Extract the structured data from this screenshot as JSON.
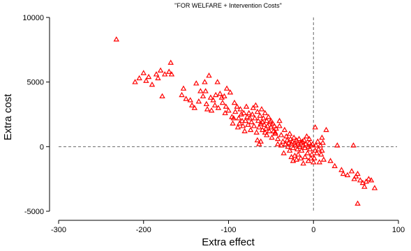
{
  "chart_data": {
    "type": "scatter",
    "title": "\"FOR WELFARE + Intervention Costs\"",
    "xlabel": "Extra effect",
    "ylabel": "Extra cost",
    "xlim": [
      -300,
      100
    ],
    "ylim": [
      -5000,
      10000
    ],
    "x_ticks": [
      -300,
      -200,
      -100,
      0,
      100
    ],
    "y_ticks": [
      -5000,
      0,
      5000,
      10000
    ],
    "x_tick_labels": [
      "-300",
      "-200",
      "-100",
      "0",
      "100"
    ],
    "y_tick_labels": [
      "-5000",
      "0",
      "5000",
      "10000"
    ],
    "reference_lines": {
      "x": 0,
      "y": 0,
      "style": "dashed"
    },
    "marker": "triangle-open",
    "marker_color": "#ff0000",
    "grid": false,
    "points": [
      [
        -232,
        8300
      ],
      [
        -210,
        5000
      ],
      [
        -205,
        5300
      ],
      [
        -200,
        5700
      ],
      [
        -197,
        5100
      ],
      [
        -194,
        5400
      ],
      [
        -190,
        4800
      ],
      [
        -185,
        5600
      ],
      [
        -183,
        5300
      ],
      [
        -180,
        5900
      ],
      [
        -178,
        3900
      ],
      [
        -175,
        5600
      ],
      [
        -170,
        5800
      ],
      [
        -168,
        6500
      ],
      [
        -167,
        5600
      ],
      [
        -155,
        4000
      ],
      [
        -153,
        4500
      ],
      [
        -150,
        3700
      ],
      [
        -145,
        3600
      ],
      [
        -143,
        3200
      ],
      [
        -140,
        3000
      ],
      [
        -138,
        4900
      ],
      [
        -135,
        3500
      ],
      [
        -133,
        4300
      ],
      [
        -130,
        3900
      ],
      [
        -128,
        5000
      ],
      [
        -127,
        4300
      ],
      [
        -126,
        3300
      ],
      [
        -125,
        2900
      ],
      [
        -123,
        5500
      ],
      [
        -121,
        3800
      ],
      [
        -120,
        2800
      ],
      [
        -118,
        3600
      ],
      [
        -116,
        3200
      ],
      [
        -115,
        4000
      ],
      [
        -113,
        5000
      ],
      [
        -112,
        3000
      ],
      [
        -110,
        4100
      ],
      [
        -108,
        3800
      ],
      [
        -107,
        3400
      ],
      [
        -105,
        3900
      ],
      [
        -104,
        2600
      ],
      [
        -103,
        3100
      ],
      [
        -102,
        4500
      ],
      [
        -100,
        2800
      ],
      [
        -98,
        4200
      ],
      [
        -96,
        2300
      ],
      [
        -95,
        1800
      ],
      [
        -94,
        2200
      ],
      [
        -93,
        3400
      ],
      [
        -92,
        2700
      ],
      [
        -90,
        3100
      ],
      [
        -89,
        1500
      ],
      [
        -88,
        2200
      ],
      [
        -87,
        1800
      ],
      [
        -86,
        2900
      ],
      [
        -85,
        2500
      ],
      [
        -84,
        2000
      ],
      [
        -83,
        1600
      ],
      [
        -82,
        2600
      ],
      [
        -81,
        1200
      ],
      [
        -80,
        2000
      ],
      [
        -79,
        3100
      ],
      [
        -78,
        2300
      ],
      [
        -77,
        1700
      ],
      [
        -76,
        2600
      ],
      [
        -75,
        2200
      ],
      [
        -74,
        1300
      ],
      [
        -73,
        1900
      ],
      [
        -72,
        2500
      ],
      [
        -71,
        3000
      ],
      [
        -70,
        1600
      ],
      [
        -69,
        2200
      ],
      [
        -68,
        3200
      ],
      [
        -67,
        1100
      ],
      [
        -66,
        2700
      ],
      [
        -65,
        2000
      ],
      [
        -64,
        1500
      ],
      [
        -63,
        2400
      ],
      [
        -62,
        1800
      ],
      [
        -61,
        2900
      ],
      [
        -60,
        1300
      ],
      [
        -59,
        2200
      ],
      [
        -58,
        1700
      ],
      [
        -57,
        2600
      ],
      [
        -56,
        1400
      ],
      [
        -55,
        2000
      ],
      [
        -54,
        1600
      ],
      [
        -53,
        2300
      ],
      [
        -52,
        1200
      ],
      [
        -51,
        1900
      ],
      [
        -50,
        1500
      ],
      [
        -49,
        700
      ],
      [
        -48,
        1800
      ],
      [
        -47,
        1200
      ],
      [
        -46,
        1600
      ],
      [
        -45,
        1000
      ],
      [
        -44,
        1400
      ],
      [
        -42,
        600
      ],
      [
        -40,
        2000
      ],
      [
        -38,
        900
      ],
      [
        -36,
        400
      ],
      [
        -34,
        1300
      ],
      [
        -33,
        200
      ],
      [
        -32,
        800
      ],
      [
        -31,
        500
      ],
      [
        -30,
        0
      ],
      [
        -29,
        300
      ],
      [
        -28,
        1000
      ],
      [
        -27,
        600
      ],
      [
        -26,
        200
      ],
      [
        -25,
        400
      ],
      [
        -24,
        -100
      ],
      [
        -23,
        700
      ],
      [
        -22,
        300
      ],
      [
        -21,
        100
      ],
      [
        -20,
        500
      ],
      [
        -19,
        -200
      ],
      [
        -18,
        200
      ],
      [
        -17,
        600
      ],
      [
        -16,
        0
      ],
      [
        -15,
        300
      ],
      [
        -14,
        -300
      ],
      [
        -13,
        400
      ],
      [
        -12,
        100
      ],
      [
        -11,
        500
      ],
      [
        -10,
        -100
      ],
      [
        -9,
        200
      ],
      [
        -8,
        800
      ],
      [
        -7,
        -500
      ],
      [
        -6,
        0
      ],
      [
        -5,
        300
      ],
      [
        -4,
        -200
      ],
      [
        -3,
        100
      ],
      [
        -2,
        -600
      ],
      [
        -1,
        200
      ],
      [
        1,
        -900
      ],
      [
        2,
        -300
      ],
      [
        3,
        100
      ],
      [
        4,
        -500
      ],
      [
        5,
        400
      ],
      [
        6,
        -200
      ],
      [
        7,
        -1200
      ],
      [
        8,
        100
      ],
      [
        9,
        -600
      ],
      [
        10,
        -300
      ],
      [
        11,
        300
      ],
      [
        12,
        -1000
      ],
      [
        15,
        1300
      ],
      [
        -62,
        400
      ],
      [
        -64,
        200
      ],
      [
        -66,
        500
      ],
      [
        -35,
        -500
      ],
      [
        -28,
        -300
      ],
      [
        -26,
        -800
      ],
      [
        -24,
        -1100
      ],
      [
        -22,
        -700
      ],
      [
        -20,
        -1000
      ],
      [
        -18,
        -600
      ],
      [
        -15,
        -900
      ],
      [
        -12,
        -1300
      ],
      [
        -10,
        -800
      ],
      [
        -6,
        -1100
      ],
      [
        -3,
        -900
      ],
      [
        0,
        -1200
      ],
      [
        20,
        -1100
      ],
      [
        25,
        -1500
      ],
      [
        28,
        100
      ],
      [
        33,
        -1800
      ],
      [
        35,
        -2100
      ],
      [
        40,
        -2200
      ],
      [
        45,
        -1900
      ],
      [
        48,
        -2500
      ],
      [
        50,
        -2300
      ],
      [
        52,
        -2100
      ],
      [
        55,
        -2600
      ],
      [
        58,
        -2800
      ],
      [
        60,
        -3100
      ],
      [
        62,
        -2700
      ],
      [
        65,
        -2500
      ],
      [
        68,
        -2600
      ],
      [
        72,
        -3200
      ],
      [
        -40,
        1600
      ],
      [
        -45,
        1100
      ],
      [
        -50,
        2000
      ],
      [
        -55,
        900
      ],
      [
        -60,
        1900
      ],
      [
        -57,
        1100
      ],
      [
        -42,
        200
      ],
      [
        -38,
        100
      ],
      [
        -5,
        600
      ],
      [
        2,
        1500
      ],
      [
        10,
        700
      ],
      [
        47,
        100
      ],
      [
        52,
        -4400
      ]
    ]
  }
}
